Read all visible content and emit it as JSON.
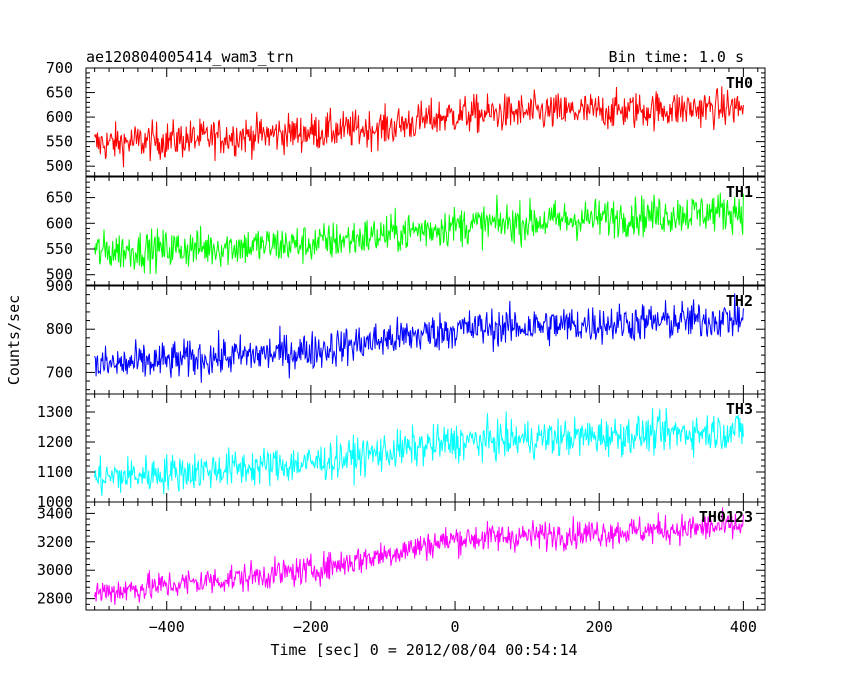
{
  "chart_data": [
    {
      "type": "line",
      "title": "ae120804005414_wam3_trn",
      "bin_label": "Bin time: 1.0 s",
      "channel": "TH0",
      "color": "#ff0000",
      "ylim": [
        480,
        700
      ],
      "yticks": [
        500,
        550,
        600,
        650,
        700
      ],
      "series": [
        {
          "name": "TH0",
          "trend": [
            [
              -500,
              545
            ],
            [
              -100,
              578
            ],
            [
              0,
              605
            ],
            [
              400,
              620
            ]
          ],
          "noise": 30,
          "step": 1
        }
      ]
    },
    {
      "type": "line",
      "channel": "TH1",
      "color": "#00ff00",
      "ylim": [
        480,
        690
      ],
      "yticks": [
        500,
        550,
        600,
        650
      ],
      "series": [
        {
          "name": "TH1",
          "trend": [
            [
              -500,
              545
            ],
            [
              -200,
              560
            ],
            [
              0,
              595
            ],
            [
              400,
              625
            ]
          ],
          "noise": 30,
          "step": 1
        }
      ]
    },
    {
      "type": "line",
      "channel": "TH2",
      "color": "#0000ff",
      "ylim": [
        650,
        900
      ],
      "yticks": [
        700,
        800,
        900
      ],
      "series": [
        {
          "name": "TH2",
          "trend": [
            [
              -500,
              715
            ],
            [
              -200,
              750
            ],
            [
              0,
              800
            ],
            [
              400,
              825
            ]
          ],
          "noise": 35,
          "step": 1
        }
      ]
    },
    {
      "type": "line",
      "channel": "TH3",
      "color": "#00ffff",
      "ylim": [
        1000,
        1360
      ],
      "yticks": [
        1000,
        1100,
        1200,
        1300
      ],
      "series": [
        {
          "name": "TH3",
          "trend": [
            [
              -500,
              1080
            ],
            [
              -200,
              1130
            ],
            [
              0,
              1200
            ],
            [
              400,
              1240
            ]
          ],
          "noise": 50,
          "step": 1
        }
      ]
    },
    {
      "type": "line",
      "channel": "TH0123",
      "color": "#ff00ff",
      "ylim": [
        2720,
        3480
      ],
      "yticks": [
        2800,
        3000,
        3200,
        3400
      ],
      "series": [
        {
          "name": "TH0123",
          "trend": [
            [
              -500,
              2840
            ],
            [
              -200,
              3000
            ],
            [
              0,
              3220
            ],
            [
              400,
              3310
            ]
          ],
          "noise": 80,
          "step": 1
        }
      ]
    }
  ],
  "axes": {
    "xlim": [
      -512,
      430
    ],
    "xticks": [
      -400,
      -200,
      0,
      200,
      400
    ],
    "xticklabels": [
      "−400",
      "−200",
      "0",
      "200",
      "400"
    ],
    "xlabel": "Time [sec] 0 = 2012/08/04 00:54:14",
    "ylabel": "Counts/sec"
  }
}
